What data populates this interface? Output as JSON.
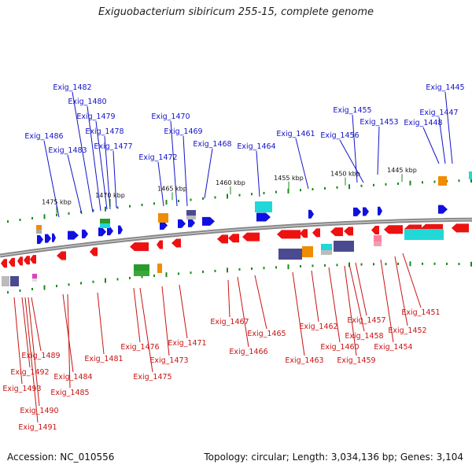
{
  "title": "Exiguobacterium sibiricum 255-15, complete genome",
  "footer": {
    "accession": "Accession: NC_010556",
    "stats": "Topology: circular; Length: 3,034,136 bp; Genes: 3,104"
  },
  "colors": {
    "top_strand": "#1010e0",
    "bottom_strand": "#ee1111",
    "backbone": "#888888",
    "tick": "#1a8a1a",
    "orange": "#f08c00",
    "cyan": "#20d8d8",
    "slate": "#4a4a90",
    "green": "#2a9a2a",
    "pink": "#ff80a0",
    "magenta": "#e040c0"
  },
  "scale_labels": [
    "1475 kbp",
    "1470 kbp",
    "1465 kbp",
    "1460 kbp",
    "1455 kbp",
    "1450 kbp",
    "1445 kbp"
  ],
  "top_labels": [
    "Exig_1482",
    "Exig_1480",
    "Exig_1479",
    "Exig_1478",
    "Exig_1477",
    "Exig_1486",
    "Exig_1483",
    "Exig_1470",
    "Exig_1469",
    "Exig_1472",
    "Exig_1468",
    "Exig_1464",
    "Exig_1461",
    "Exig_1455",
    "Exig_1456",
    "Exig_1453",
    "Exig_1445",
    "Exig_1447",
    "Exig_1448"
  ],
  "bottom_labels": [
    "Exig_1489",
    "Exig_1492",
    "Exig_1493",
    "Exig_1490",
    "Exig_1491",
    "Exig_1484",
    "Exig_1485",
    "Exig_1481",
    "Exig_1476",
    "Exig_1475",
    "Exig_1473",
    "Exig_1471",
    "Exig_1467",
    "Exig_1466",
    "Exig_1465",
    "Exig_1463",
    "Exig_1462",
    "Exig_1460",
    "Exig_1459",
    "Exig_1458",
    "Exig_1457",
    "Exig_1454",
    "Exig_1452",
    "Exig_1451"
  ]
}
